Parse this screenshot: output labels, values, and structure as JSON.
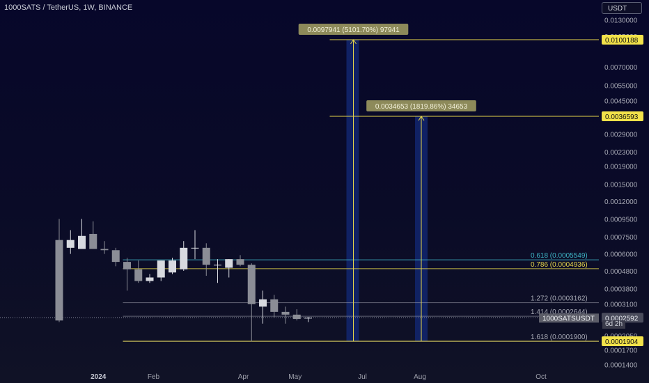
{
  "header": {
    "symbol_title": "1000SATS / TetherUS, 1W, BINANCE",
    "currency_button": "USDT"
  },
  "colors": {
    "background": "#0b0c24",
    "candle_up": "#d7d9df",
    "candle_down": "#8b8d96",
    "fib_yellow": "#e5d54a",
    "fib_blue": "#3fb6c7",
    "fib_gray": "#a7a9b4",
    "projection_zone": "#12266e",
    "target_label_bg": "#8d8a5a",
    "symbol_tag_bg": "#5c5d68",
    "current_price_line": "#8f92a3"
  },
  "chart_data": {
    "type": "candlestick",
    "symbol": "1000SATS / TetherUS",
    "interval": "1W",
    "exchange": "BINANCE",
    "y_scale": "log",
    "y_axis_labels": [
      "0.0130000",
      "0.0105000",
      "0.0070000",
      "0.0055000",
      "0.0045000",
      "0.0029000",
      "0.0023000",
      "0.0019000",
      "0.0015000",
      "0.0012000",
      "0.0009500",
      "0.0007500",
      "0.0006000",
      "0.0004800",
      "0.0003800",
      "0.0003100",
      "0.0002050",
      "0.0001700",
      "0.0001400"
    ],
    "x_axis_labels": [
      "2024",
      "Feb",
      "Apr",
      "May",
      "Jul",
      "Aug",
      "Oct"
    ],
    "candles": [
      {
        "week": "2023-12-25",
        "open": 0.00072,
        "high": 0.00095,
        "low": 0.000245,
        "close": 0.00025
      },
      {
        "week": "2024-01-01",
        "open": 0.00065,
        "high": 0.00082,
        "low": 0.0006,
        "close": 0.00072
      },
      {
        "week": "2024-01-08",
        "open": 0.00064,
        "high": 0.00095,
        "low": 0.00064,
        "close": 0.00076
      },
      {
        "week": "2024-01-15",
        "open": 0.00078,
        "high": 0.00092,
        "low": 0.00064,
        "close": 0.00064
      },
      {
        "week": "2024-01-22",
        "open": 0.00064,
        "high": 0.00071,
        "low": 0.0006,
        "close": 0.00063
      },
      {
        "week": "2024-01-29",
        "open": 0.00063,
        "high": 0.00065,
        "low": 0.00051,
        "close": 0.00054
      },
      {
        "week": "2024-02-05",
        "open": 0.00054,
        "high": 0.00057,
        "low": 0.00037,
        "close": 0.00049
      },
      {
        "week": "2024-02-12",
        "open": 0.00049,
        "high": 0.00055,
        "low": 0.00041,
        "close": 0.00042
      },
      {
        "week": "2024-02-19",
        "open": 0.00042,
        "high": 0.00046,
        "low": 0.00041,
        "close": 0.00044
      },
      {
        "week": "2024-02-26",
        "open": 0.00044,
        "high": 0.00055,
        "low": 0.00042,
        "close": 0.00055
      },
      {
        "week": "2024-03-04",
        "open": 0.00047,
        "high": 0.00057,
        "low": 0.00046,
        "close": 0.00055
      },
      {
        "week": "2024-03-11",
        "open": 0.00049,
        "high": 0.00071,
        "low": 0.00048,
        "close": 0.00065
      },
      {
        "week": "2024-03-18",
        "open": 0.00065,
        "high": 0.00082,
        "low": 0.00056,
        "close": 0.00065
      },
      {
        "week": "2024-03-25",
        "open": 0.00065,
        "high": 0.00069,
        "low": 0.00045,
        "close": 0.00052
      },
      {
        "week": "2024-04-01",
        "open": 0.00052,
        "high": 0.00056,
        "low": 0.00041,
        "close": 0.00052
      },
      {
        "week": "2024-04-08",
        "open": 0.0005,
        "high": 0.00056,
        "low": 0.00044,
        "close": 0.00056
      },
      {
        "week": "2024-04-15",
        "open": 0.00056,
        "high": 0.00059,
        "low": 0.00051,
        "close": 0.00052
      },
      {
        "week": "2024-04-22",
        "open": 0.00052,
        "high": 0.00053,
        "low": 0.00019,
        "close": 0.00031
      },
      {
        "week": "2024-04-29",
        "open": 0.0003,
        "high": 0.00037,
        "low": 0.00024,
        "close": 0.00033
      },
      {
        "week": "2024-05-06",
        "open": 0.00033,
        "high": 0.00035,
        "low": 0.00026,
        "close": 0.00028
      },
      {
        "week": "2024-05-13",
        "open": 0.00028,
        "high": 0.0003,
        "low": 0.00024,
        "close": 0.00027
      },
      {
        "week": "2024-05-20",
        "open": 0.00027,
        "high": 0.00029,
        "low": 0.00025,
        "close": 0.000255
      },
      {
        "week": "2024-05-27",
        "open": 0.000258,
        "high": 0.000262,
        "low": 0.000245,
        "close": 0.000259
      }
    ],
    "fib_levels": [
      {
        "label": "0.618 (0.0005549)",
        "price": 0.0005549,
        "color": "#3fb6c7"
      },
      {
        "label": "0.786 (0.0004936)",
        "price": 0.0004936,
        "color": "#e5d54a"
      },
      {
        "label": "1.272 (0.0003162)",
        "price": 0.0003162,
        "color": "#a7a9b4"
      },
      {
        "label": "1.414 (0.0002644)",
        "price": 0.0002644,
        "color": "#a7a9b4"
      },
      {
        "label": "1.618 (0.0001900)",
        "price": 0.00019,
        "color": "#a7a9b4"
      }
    ],
    "projections": [
      {
        "label": "0.0097941 (5101.70%) 97941",
        "from_price": 0.0001904,
        "to_price": 0.0100188
      },
      {
        "label": "0.0034653 (1819.86%) 34653",
        "from_price": 0.0001904,
        "to_price": 0.0036593
      }
    ],
    "price_tags": [
      {
        "label": "0.0100188",
        "price": 0.0100188,
        "style": "yellow"
      },
      {
        "label": "0.0036593",
        "price": 0.0036593,
        "style": "yellow"
      },
      {
        "label": "0.0002592",
        "price": 0.0002592,
        "style": "current"
      },
      {
        "label": "0.0001904",
        "price": 0.0001904,
        "style": "yellow"
      }
    ],
    "symbol_tag": "1000SATSUSDT",
    "countdown": "6d 2h",
    "current_price": 0.0002592
  }
}
